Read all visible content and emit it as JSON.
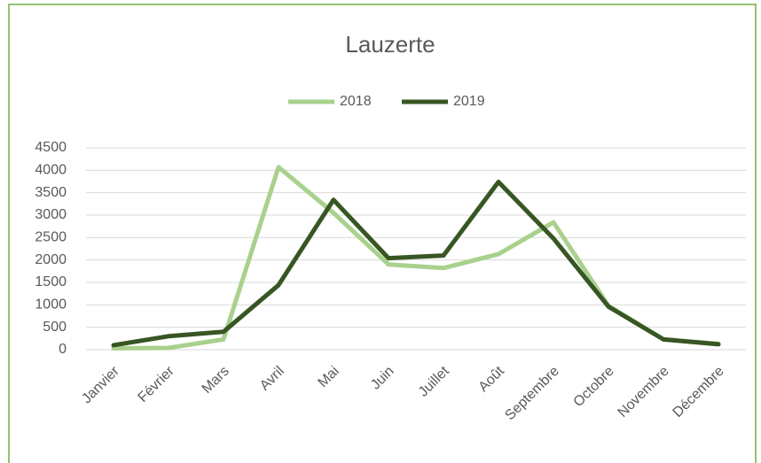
{
  "chart_data": {
    "type": "line",
    "title": "Lauzerte",
    "categories": [
      "Janvier",
      "Février",
      "Mars",
      "Avril",
      "Mai",
      "Juin",
      "Juillet",
      "Août",
      "Septembre",
      "Octobre",
      "Novembre",
      "Décembre"
    ],
    "series": [
      {
        "name": "2018",
        "color": "#a9d18e",
        "values": [
          30,
          40,
          230,
          4070,
          3050,
          1900,
          1820,
          2130,
          2840,
          980,
          230,
          130
        ]
      },
      {
        "name": "2019",
        "color": "#375623",
        "values": [
          100,
          300,
          400,
          1440,
          3340,
          2040,
          2100,
          3740,
          2480,
          960,
          230,
          120
        ]
      }
    ],
    "ylim": [
      0,
      4500
    ],
    "yticks": [
      0,
      500,
      1000,
      1500,
      2000,
      2500,
      3000,
      3500,
      4000,
      4500
    ],
    "grid": true,
    "legend": "top"
  }
}
